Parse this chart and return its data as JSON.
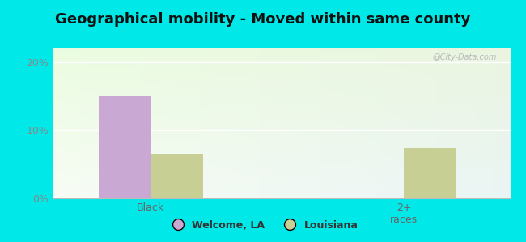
{
  "title": "Geographical mobility - Moved within same county",
  "categories": [
    "Black",
    "2+\nraces"
  ],
  "welcome_la_values": [
    15.0,
    0.0
  ],
  "louisiana_values": [
    6.5,
    7.5
  ],
  "welcome_la_color": "#c9a8d4",
  "louisiana_color": "#c8cf94",
  "ylim": [
    0,
    22
  ],
  "yticks": [
    0,
    10,
    20
  ],
  "ytick_labels": [
    "0%",
    "10%",
    "20%"
  ],
  "background_color": "#00e8e8",
  "title_fontsize": 13,
  "tick_fontsize": 9,
  "legend_labels": [
    "Welcome, LA",
    "Louisiana"
  ],
  "bar_width": 0.32,
  "watermark": "@City-Data.com",
  "x_positions": [
    0.55,
    2.1
  ],
  "xlim": [
    -0.05,
    2.75
  ]
}
